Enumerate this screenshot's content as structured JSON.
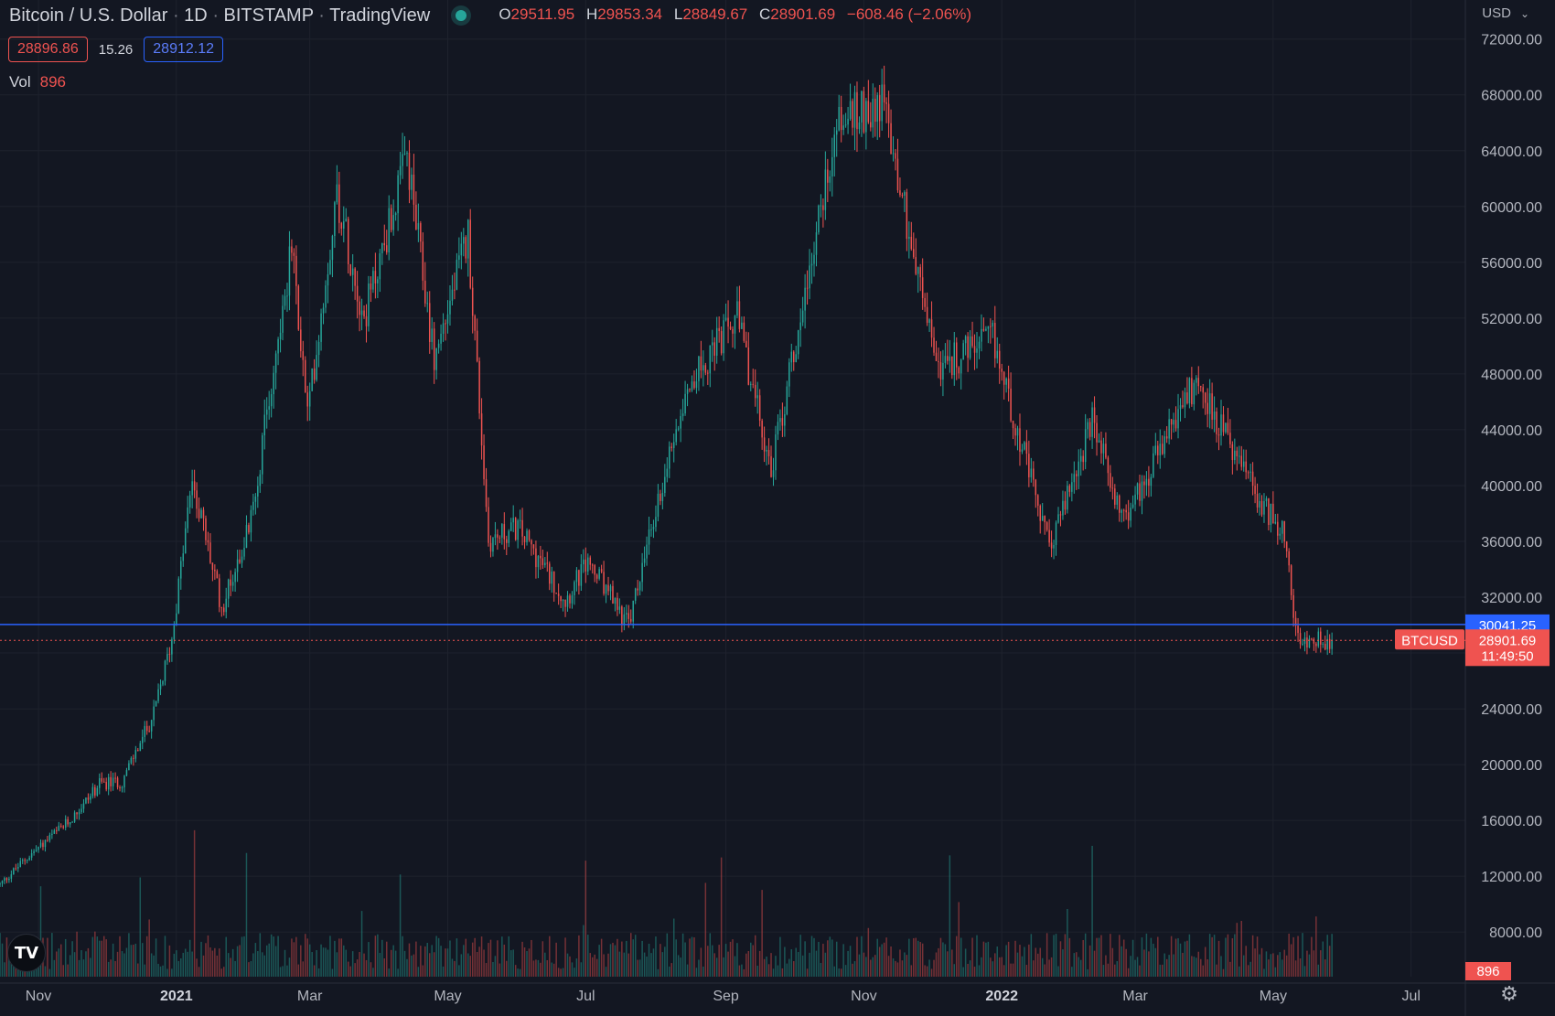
{
  "header": {
    "symbol": "Bitcoin / U.S. Dollar",
    "interval": "1D",
    "exchange": "BITSTAMP",
    "source": "TradingView",
    "o_label": "O",
    "o_value": "29511.95",
    "h_label": "H",
    "h_value": "29853.34",
    "l_label": "L",
    "l_value": "28849.67",
    "c_label": "C",
    "c_value": "28901.69",
    "change": "−608.46 (−2.06%)"
  },
  "sell_price": "28896.86",
  "spread": "15.26",
  "buy_price": "28912.12",
  "volume": {
    "label": "Vol",
    "value": "896"
  },
  "currency": "USD",
  "logo_text": "TV",
  "icons": {
    "currency_dropdown": "chevron-down-icon",
    "settings": "gear-icon",
    "logo": "tradingview-logo-icon"
  },
  "colors": {
    "up": "#26a69a",
    "down": "#ef5350",
    "background": "#131722",
    "alert_line": "#2962ff",
    "grid": "#1e222d"
  },
  "chart_data": {
    "type": "candlestick",
    "interval": "1D",
    "y_ticks": [
      8000,
      12000,
      16000,
      20000,
      24000,
      28000,
      32000,
      36000,
      40000,
      44000,
      48000,
      52000,
      56000,
      60000,
      64000,
      68000,
      72000
    ],
    "y_tick_labels": [
      "8000.00",
      "12000.00",
      "16000.00",
      "20000.00",
      "24000.00",
      "28000.00",
      "32000.00",
      "36000.00",
      "40000.00",
      "44000.00",
      "48000.00",
      "52000.00",
      "56000.00",
      "60000.00",
      "64000.00",
      "68000.00",
      "72000.00"
    ],
    "x_ticks": [
      "Nov",
      "2021",
      "Mar",
      "May",
      "Jul",
      "Sep",
      "Nov",
      "2022",
      "Mar",
      "May",
      "Jul"
    ],
    "x_tick_dates": [
      "2020-11-01",
      "2021-01-01",
      "2021-03-01",
      "2021-05-01",
      "2021-07-01",
      "2021-09-01",
      "2021-11-01",
      "2022-01-01",
      "2022-03-01",
      "2022-05-01",
      "2022-07-01"
    ],
    "x_range": [
      "2020-10-15",
      "2022-07-25"
    ],
    "y_range": [
      4800,
      74800
    ],
    "path": [
      [
        "2020-10-15",
        11400
      ],
      [
        "2020-10-26",
        13200
      ],
      [
        "2020-11-15",
        16000
      ],
      [
        "2020-11-28",
        18600
      ],
      [
        "2020-12-08",
        18800
      ],
      [
        "2020-12-22",
        23600
      ],
      [
        "2020-12-30",
        29000
      ],
      [
        "2021-01-08",
        40500
      ],
      [
        "2021-01-21",
        31200
      ],
      [
        "2021-02-03",
        37500
      ],
      [
        "2021-02-21",
        57000
      ],
      [
        "2021-02-28",
        45000
      ],
      [
        "2021-03-13",
        61000
      ],
      [
        "2021-03-25",
        52000
      ],
      [
        "2021-04-13",
        63500
      ],
      [
        "2021-04-25",
        49000
      ],
      [
        "2021-05-10",
        58000
      ],
      [
        "2021-05-19",
        36000
      ],
      [
        "2021-06-01",
        37000
      ],
      [
        "2021-06-22",
        31800
      ],
      [
        "2021-07-02",
        34500
      ],
      [
        "2021-07-20",
        30000
      ],
      [
        "2021-08-14",
        47000
      ],
      [
        "2021-09-06",
        52000
      ],
      [
        "2021-09-21",
        41000
      ],
      [
        "2021-10-20",
        66000
      ],
      [
        "2021-11-10",
        67500
      ],
      [
        "2021-11-26",
        54000
      ],
      [
        "2021-12-04",
        48500
      ],
      [
        "2021-12-28",
        50500
      ],
      [
        "2022-01-22",
        35500
      ],
      [
        "2022-02-10",
        44500
      ],
      [
        "2022-02-24",
        37500
      ],
      [
        "2022-03-28",
        47500
      ],
      [
        "2022-04-26",
        38500
      ],
      [
        "2022-05-05",
        37000
      ],
      [
        "2022-05-12",
        28800
      ],
      [
        "2022-05-27",
        29000
      ]
    ],
    "last_close": 28901.69,
    "alert_price": 30041.25,
    "labels": {
      "alert": "30041.25",
      "symbol_tag": "BTCUSD",
      "last_price": "28901.69",
      "countdown": "11:49:50",
      "volume_tag": "896"
    }
  }
}
